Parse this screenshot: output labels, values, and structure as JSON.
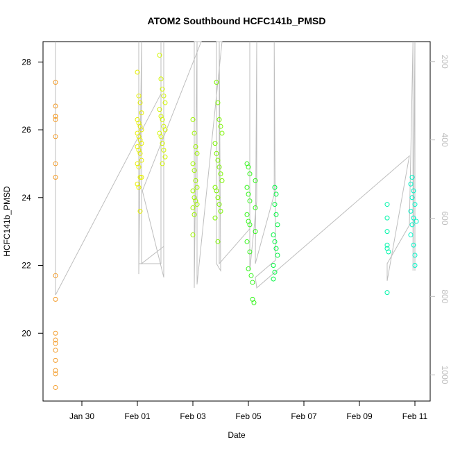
{
  "chart_data": {
    "type": "scatter",
    "title": "ATOM2 Southbound HCFC141b_PMSD",
    "x_label": "Date",
    "y_label": "HCFC141b_PMSD",
    "xlim": [
      28.6,
      42.55
    ],
    "xticks": [
      {
        "value": 30,
        "label": "Jan 30"
      },
      {
        "value": 32,
        "label": "Feb 01"
      },
      {
        "value": 34,
        "label": "Feb 03"
      },
      {
        "value": 36,
        "label": "Feb 05"
      },
      {
        "value": 38,
        "label": "Feb 07"
      },
      {
        "value": 40,
        "label": "Feb 09"
      },
      {
        "value": 42,
        "label": "Feb 11"
      }
    ],
    "ylim": [
      18.0,
      28.6
    ],
    "yticks": [
      20,
      22,
      24,
      26,
      28
    ],
    "y2lim": [
      1067,
      149
    ],
    "y2ticks": [
      200,
      400,
      600,
      800,
      1000
    ],
    "series": [
      {
        "color": "#bebebe",
        "axis": "y2",
        "x": [
          29.05,
          29.05,
          32.85,
          32.85,
          32.85,
          32.05,
          32.05,
          32.05,
          32.15,
          32.15,
          32.95,
          32.95,
          32.95,
          32.18,
          34.3,
          34.05,
          34.05,
          34.15,
          34.15,
          35.05,
          34.85,
          34.85,
          35.0,
          34.95,
          34.95,
          36.05,
          36.05,
          36.05,
          36.3,
          36.3,
          36.25,
          36.93,
          36.93,
          36.98,
          36.25,
          36.3,
          41.8,
          41.0,
          41.0,
          41.8,
          41.93,
          41.93,
          42.0,
          42.0
        ],
        "values": [
          149,
          796,
          282,
          149,
          716,
          716,
          149,
          743,
          149,
          716,
          672,
          149,
          751,
          530,
          149,
          149,
          778,
          149,
          769,
          149,
          149,
          716,
          734,
          149,
          716,
          627,
          149,
          734,
          556,
          149,
          716,
          539,
          149,
          707,
          751,
          778,
          441,
          760,
          716,
          618,
          149,
          734,
          149,
          734
        ]
      },
      {
        "color": "#f39c2a",
        "x": [
          29.05,
          29.05,
          29.05,
          29.05,
          29.05,
          29.05,
          29.05,
          29.05,
          29.05,
          29.05,
          29.05,
          29.05,
          29.05,
          29.05,
          29.05,
          29.05,
          29.05,
          29.05
        ],
        "values": [
          27.4,
          26.7,
          26.4,
          26.4,
          26.3,
          25.8,
          25.0,
          24.6,
          21.7,
          21.0,
          20.0,
          19.8,
          19.7,
          19.5,
          19.2,
          18.9,
          18.8,
          18.4
        ]
      },
      {
        "color": "#e5ef00",
        "x": [
          32.0,
          32.05,
          32.1,
          32.15,
          32.0,
          32.05,
          32.1,
          32.15,
          32.0,
          32.05,
          32.1,
          32.15,
          32.0,
          32.05,
          32.1,
          32.15,
          32.0,
          32.05,
          32.1,
          32.15,
          32.0,
          32.05,
          32.1
        ],
        "values": [
          27.7,
          27.0,
          26.8,
          26.5,
          26.3,
          26.2,
          26.1,
          26.0,
          25.9,
          25.8,
          25.7,
          25.6,
          25.5,
          25.4,
          25.3,
          25.1,
          25.0,
          24.9,
          24.6,
          24.6,
          24.4,
          24.3,
          23.6
        ]
      },
      {
        "color": "#d2f500",
        "x": [
          32.8,
          32.85,
          32.9,
          32.95,
          33.0,
          32.8,
          32.85,
          32.9,
          32.95,
          33.0,
          32.8,
          32.85,
          32.9,
          32.95,
          33.0,
          32.9
        ],
        "values": [
          28.2,
          27.5,
          27.2,
          27.0,
          26.8,
          26.6,
          26.4,
          26.3,
          26.1,
          26.0,
          25.9,
          25.8,
          25.6,
          25.4,
          25.2,
          25.0
        ]
      },
      {
        "color": "#9ef500",
        "x": [
          34.0,
          34.05,
          34.1,
          34.15,
          34.0,
          34.05,
          34.1,
          34.15,
          34.0,
          34.05,
          34.1,
          34.15,
          34.0,
          34.05,
          34.0
        ],
        "values": [
          26.3,
          25.9,
          25.5,
          25.3,
          25.0,
          24.8,
          24.5,
          24.3,
          24.2,
          24.0,
          23.9,
          23.8,
          23.7,
          23.5,
          22.9
        ]
      },
      {
        "color": "#7cf500",
        "x": [
          34.85,
          34.9,
          34.95,
          35.0,
          35.05,
          34.8,
          34.85,
          34.9,
          34.95,
          35.0,
          35.05,
          34.8,
          34.85,
          34.9,
          34.95,
          35.0,
          34.8,
          34.9
        ],
        "values": [
          27.4,
          26.8,
          26.3,
          26.1,
          25.9,
          25.6,
          25.3,
          25.1,
          24.9,
          24.7,
          24.5,
          24.3,
          24.2,
          24.0,
          23.8,
          23.6,
          23.4,
          22.7
        ]
      },
      {
        "color": "#33f51a",
        "x": [
          35.95,
          36.0,
          36.05,
          36.25,
          35.95,
          36.0,
          36.05,
          36.25,
          35.95,
          36.0,
          36.05,
          36.25,
          35.95,
          36.05,
          36.0,
          36.1,
          36.15,
          36.15,
          36.2
        ],
        "values": [
          25.0,
          24.9,
          24.7,
          24.5,
          24.3,
          24.1,
          23.9,
          23.7,
          23.5,
          23.3,
          23.2,
          23.0,
          22.7,
          22.4,
          21.9,
          21.7,
          21.5,
          21.0,
          20.9
        ]
      },
      {
        "color": "#00f540",
        "x": [
          36.95,
          37.0,
          36.95,
          37.0,
          37.05,
          36.9,
          36.95,
          37.0,
          37.05,
          36.9,
          36.95,
          36.9
        ],
        "values": [
          24.3,
          24.1,
          23.8,
          23.5,
          23.2,
          22.9,
          22.7,
          22.5,
          22.3,
          22.0,
          21.8,
          21.6
        ]
      },
      {
        "color": "#00f5aa",
        "x": [
          41.0,
          41.0,
          41.0,
          41.0,
          41.0,
          41.05,
          41.0
        ],
        "values": [
          23.8,
          23.4,
          23.0,
          22.6,
          22.5,
          22.4,
          21.2
        ]
      },
      {
        "color": "#00f5c8",
        "x": [
          41.9,
          41.85,
          41.95,
          41.9,
          42.0,
          41.85,
          41.95,
          42.05,
          41.9,
          41.85,
          41.95,
          42.0,
          42.0
        ],
        "values": [
          24.6,
          24.4,
          24.2,
          24.0,
          23.8,
          23.6,
          23.4,
          23.3,
          23.2,
          22.9,
          22.6,
          22.3,
          22.0
        ]
      }
    ]
  }
}
